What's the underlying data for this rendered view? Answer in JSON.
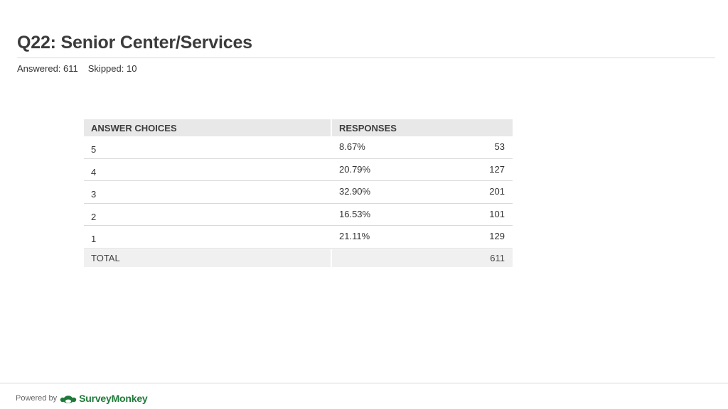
{
  "title": "Q22: Senior Center/Services",
  "answered": "Answered: 611",
  "skipped": "Skipped: 10",
  "table": {
    "header_choices": "ANSWER CHOICES",
    "header_responses": "RESPONSES",
    "total_label": "TOTAL",
    "total_value": "611"
  },
  "chart_data": {
    "type": "table",
    "columns": [
      "ANSWER CHOICES",
      "RESPONSES"
    ],
    "rows": [
      {
        "choice": "5",
        "percent": "8.67%",
        "count": "53"
      },
      {
        "choice": "4",
        "percent": "20.79%",
        "count": "127"
      },
      {
        "choice": "3",
        "percent": "32.90%",
        "count": "201"
      },
      {
        "choice": "2",
        "percent": "16.53%",
        "count": "101"
      },
      {
        "choice": "1",
        "percent": "21.11%",
        "count": "129"
      }
    ],
    "total": "611"
  },
  "footer": {
    "powered_by": "Powered by",
    "brand": "SurveyMonkey",
    "logo_icon": "surveymonkey-logo-icon",
    "brand_color": "#1f7a3a"
  }
}
